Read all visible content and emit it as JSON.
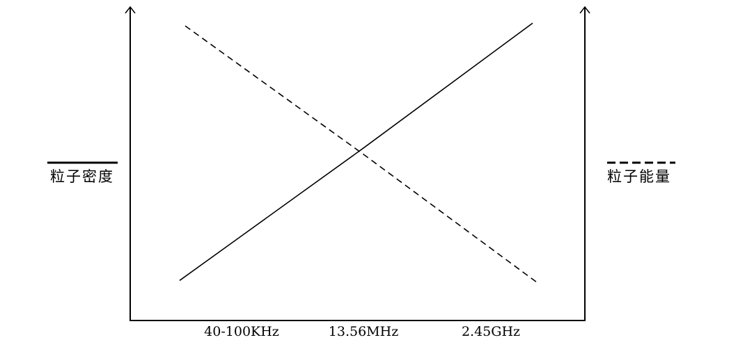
{
  "chart_data": {
    "type": "line",
    "categories": [
      "40-100KHz",
      "13.56MHz",
      "2.45GHz"
    ],
    "series": [
      {
        "name": "粒子密度",
        "style": "solid",
        "axis": "left",
        "values": [
          0.27,
          0.55,
          0.85
        ]
      },
      {
        "name": "粒子能量",
        "style": "dashed",
        "axis": "right",
        "values": [
          0.81,
          0.53,
          0.23
        ]
      }
    ],
    "ylim": [
      0,
      1
    ],
    "xlabel": "",
    "ylabel_left": "",
    "ylabel_right": "",
    "grid": false,
    "legend_placement": "left and right sides",
    "color": "#000000"
  }
}
